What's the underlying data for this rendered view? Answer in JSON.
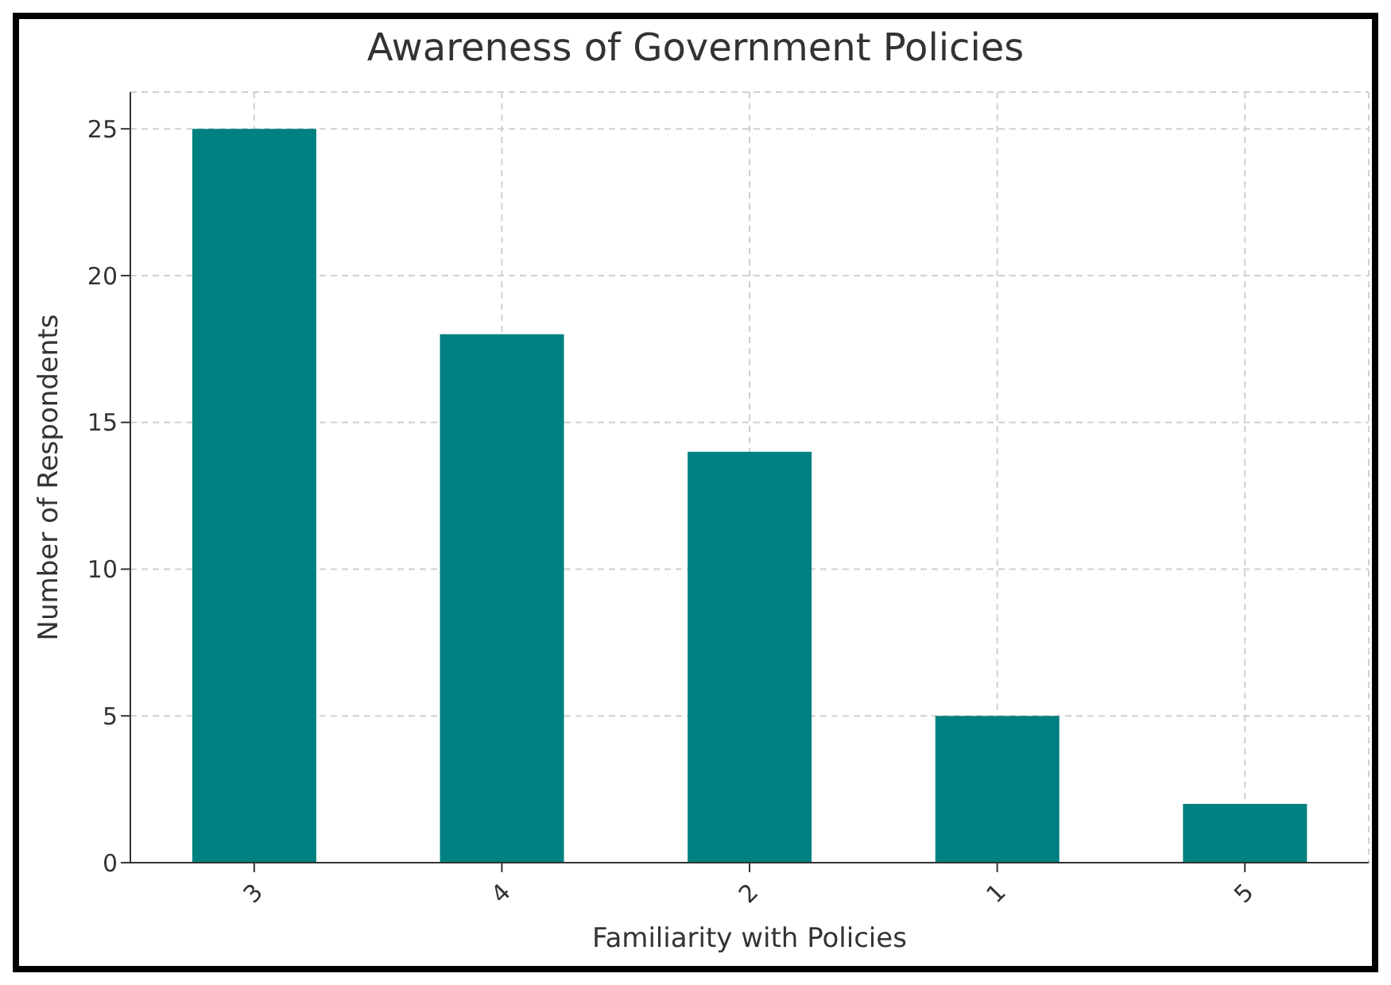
{
  "chart_data": {
    "type": "bar",
    "title": "Awareness of Government Policies",
    "xlabel": "Familiarity with Policies",
    "ylabel": "Number of Respondents",
    "categories": [
      "3",
      "4",
      "2",
      "1",
      "5"
    ],
    "values": [
      25,
      18,
      14,
      5,
      2
    ],
    "color": "#008080",
    "ylim": [
      0,
      26.25
    ],
    "yticks": [
      0,
      5,
      10,
      15,
      20,
      25
    ],
    "grid": true
  }
}
